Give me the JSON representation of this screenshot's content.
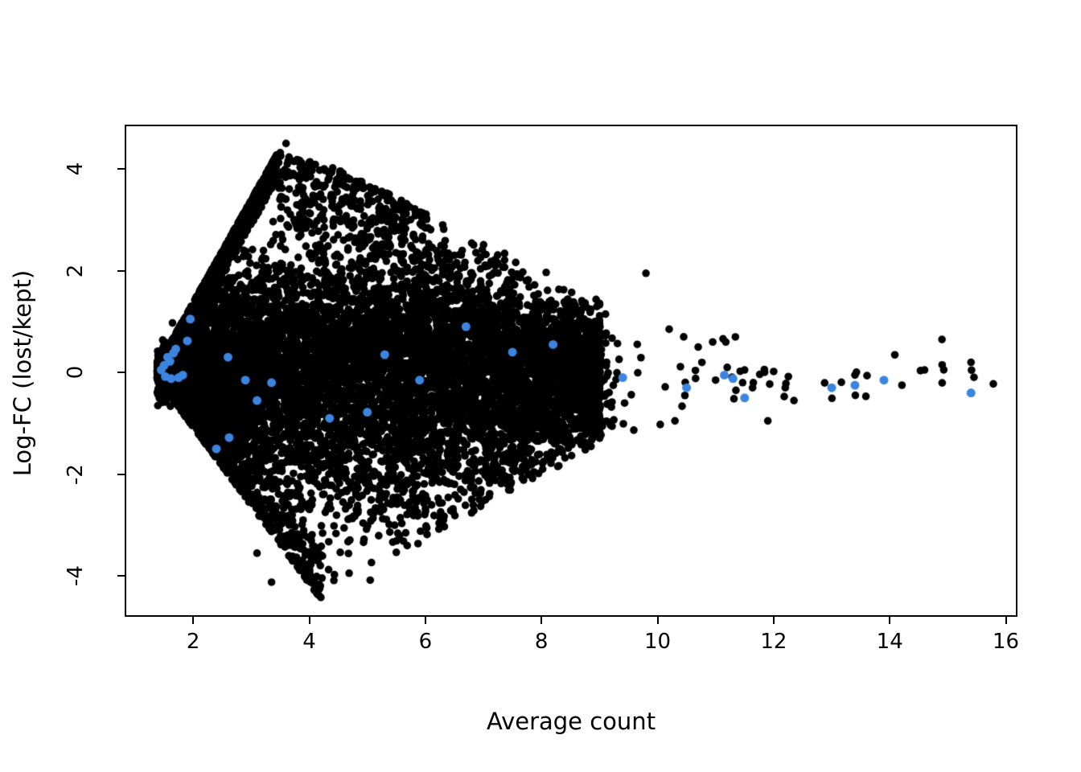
{
  "figure": {
    "background": "#ffffff",
    "plot_region_border_color": "#000000"
  },
  "chart_data": {
    "type": "scatter",
    "title": "",
    "xlabel": "Average count",
    "ylabel": "Log-FC (lost/kept)",
    "xlim": [
      0.82,
      16.2
    ],
    "ylim": [
      -4.8,
      4.87
    ],
    "x_ticks": [
      2,
      4,
      6,
      8,
      10,
      12,
      14,
      16
    ],
    "y_ticks": [
      -4,
      -2,
      0,
      2,
      4
    ],
    "grid": false,
    "legend_position": "none",
    "description": "MA plot of log-fold-change (lost/kept windows) versus average log-count; dense black cloud of windows with a sharp diagonal upper-left edge at low counts, plus highlighted blue points.",
    "series": [
      {
        "name": "all-windows-black",
        "color": "#000000",
        "marker": "filled-circle",
        "rendering": "dense overplotted cloud, approximated procedurally from envelope",
        "cloud": {
          "n": 9000,
          "seed": 42,
          "x_range": [
            1.38,
            15.8
          ],
          "tail_start": 9,
          "tail_fraction": 0.015,
          "sigma_profile": [
            [
              1.4,
              0.35
            ],
            [
              2.5,
              0.95
            ],
            [
              4,
              1.25
            ],
            [
              6,
              1.2
            ],
            [
              9,
              0.7
            ],
            [
              12,
              0.35
            ],
            [
              16,
              0.3
            ]
          ],
          "neg_skew": 1.25,
          "upper_envelope": [
            [
              1.38,
              0.12
            ],
            [
              3.45,
              4.3
            ],
            [
              4.5,
              4.0
            ],
            [
              9,
              1.45
            ],
            [
              12,
              0.6
            ],
            [
              16,
              0.45
            ]
          ],
          "lower_envelope": [
            [
              1.38,
              -0.12
            ],
            [
              4.2,
              -4.45
            ],
            [
              9,
              -1.4
            ],
            [
              12,
              -0.55
            ],
            [
              16,
              -0.4
            ]
          ],
          "edge_ridge_n": 900,
          "upper_mid_n": 320,
          "lower_ridge_n": 380,
          "left_cluster_n": 260
        },
        "outlier_points": [
          [
            3.6,
            4.5
          ],
          [
            3.5,
            4.32
          ],
          [
            3.66,
            4.18
          ],
          [
            3.35,
            3.95
          ],
          [
            4.2,
            -4.42
          ],
          [
            3.35,
            -4.12
          ],
          [
            5.05,
            -4.08
          ],
          [
            4.0,
            -3.75
          ],
          [
            3.1,
            -3.55
          ],
          [
            5.5,
            3.2
          ],
          [
            5.95,
            2.6
          ],
          [
            6.5,
            2.3
          ],
          [
            9.8,
            1.95
          ],
          [
            10.2,
            0.85
          ],
          [
            10.45,
            0.7
          ],
          [
            10.3,
            -0.95
          ],
          [
            10.7,
            0.5
          ],
          [
            10.95,
            0.6
          ],
          [
            11.0,
            -0.15
          ],
          [
            11.2,
            0.1
          ],
          [
            11.35,
            -0.35
          ],
          [
            11.5,
            0.05
          ],
          [
            11.65,
            -0.2
          ],
          [
            11.9,
            -0.95
          ],
          [
            12.0,
            0.02
          ],
          [
            12.2,
            -0.3
          ],
          [
            12.35,
            -0.55
          ],
          [
            14.6,
            0.05
          ],
          [
            14.9,
            0.65
          ],
          [
            15.4,
            0.2
          ]
        ]
      },
      {
        "name": "highlighted-blue",
        "color": "#3b85e0",
        "marker": "filled-circle",
        "points": [
          [
            1.45,
            0.05
          ],
          [
            1.5,
            0.14
          ],
          [
            1.52,
            -0.08
          ],
          [
            1.56,
            0.3
          ],
          [
            1.6,
            0.22
          ],
          [
            1.62,
            -0.12
          ],
          [
            1.66,
            0.38
          ],
          [
            1.7,
            0.46
          ],
          [
            1.75,
            -0.1
          ],
          [
            1.82,
            -0.05
          ],
          [
            1.9,
            0.62
          ],
          [
            1.95,
            1.05
          ],
          [
            2.4,
            -1.5
          ],
          [
            2.6,
            0.3
          ],
          [
            2.62,
            -1.28
          ],
          [
            2.9,
            -0.15
          ],
          [
            3.1,
            -0.55
          ],
          [
            3.35,
            -0.2
          ],
          [
            4.35,
            -0.9
          ],
          [
            5.0,
            -0.78
          ],
          [
            5.3,
            0.35
          ],
          [
            5.9,
            -0.15
          ],
          [
            6.7,
            0.9
          ],
          [
            7.5,
            0.4
          ],
          [
            8.2,
            0.55
          ],
          [
            9.4,
            -0.1
          ],
          [
            10.5,
            -0.3
          ],
          [
            11.15,
            -0.05
          ],
          [
            11.3,
            -0.12
          ],
          [
            11.5,
            -0.5
          ],
          [
            13.0,
            -0.3
          ],
          [
            13.4,
            -0.25
          ],
          [
            13.9,
            -0.15
          ],
          [
            15.4,
            -0.4
          ]
        ]
      }
    ]
  }
}
